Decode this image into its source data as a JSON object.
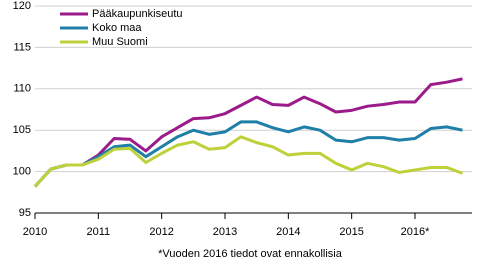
{
  "chart_data": {
    "type": "line",
    "x": [
      2010,
      2010.25,
      2010.5,
      2010.75,
      2011,
      2011.25,
      2011.5,
      2011.75,
      2012,
      2012.25,
      2012.5,
      2012.75,
      2013,
      2013.25,
      2013.5,
      2013.75,
      2014,
      2014.25,
      2014.5,
      2014.75,
      2015,
      2015.25,
      2015.5,
      2015.75,
      2016,
      2016.25,
      2016.5,
      2016.75
    ],
    "series": [
      {
        "name": "Pääkaupunkiseutu",
        "color": "#9b1b8a",
        "values": [
          98.2,
          100.3,
          100.8,
          100.8,
          102.0,
          104.0,
          103.9,
          102.5,
          104.2,
          105.3,
          106.4,
          106.5,
          107.0,
          108.0,
          109.0,
          108.1,
          108.0,
          109.0,
          108.2,
          107.2,
          107.4,
          107.9,
          108.1,
          108.4,
          108.4,
          110.5,
          110.8,
          111.2
        ]
      },
      {
        "name": "Koko maa",
        "color": "#1f7fa8",
        "values": [
          98.2,
          100.3,
          100.8,
          100.8,
          101.8,
          103.0,
          103.2,
          101.8,
          103.0,
          104.2,
          105.0,
          104.5,
          104.8,
          106.0,
          106.0,
          105.3,
          104.8,
          105.4,
          105.0,
          103.8,
          103.6,
          104.1,
          104.1,
          103.8,
          104.0,
          105.2,
          105.4,
          105.0
        ]
      },
      {
        "name": "Muu Suomi",
        "color": "#bfd13a",
        "values": [
          98.2,
          100.3,
          100.8,
          100.8,
          101.5,
          102.7,
          102.8,
          101.1,
          102.2,
          103.2,
          103.6,
          102.7,
          102.9,
          104.2,
          103.5,
          103.0,
          102.0,
          102.2,
          102.2,
          101.0,
          100.2,
          101.0,
          100.6,
          99.9,
          100.2,
          100.5,
          100.5,
          99.8
        ]
      }
    ],
    "xlim": [
      2010,
      2016.9
    ],
    "xticks": [
      2010,
      2011,
      2012,
      2013,
      2014,
      2015,
      {
        "value": 2016,
        "label": "2016*"
      }
    ],
    "ylim": [
      95,
      120
    ],
    "yticks": [
      95,
      100,
      105,
      110,
      115,
      120
    ],
    "grid": true,
    "legend": "top-left",
    "footnote": "*Vuoden 2016 tiedot ovat ennakollisia"
  }
}
